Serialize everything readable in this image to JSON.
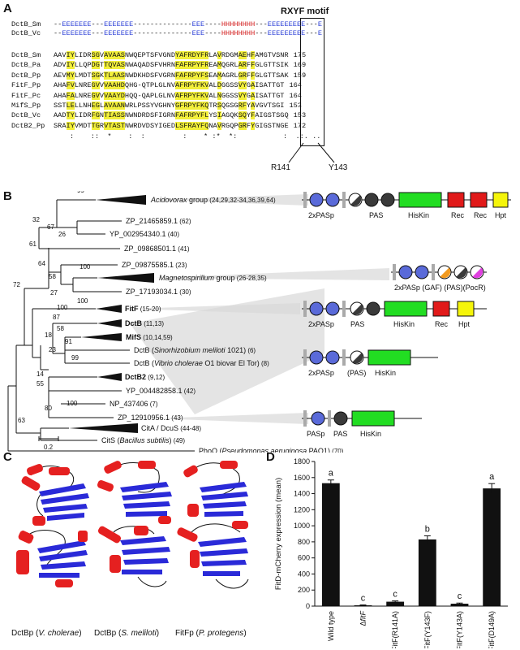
{
  "panels": {
    "a": "A",
    "b": "B",
    "c": "C",
    "d": "D"
  },
  "panel_a": {
    "motif_label": "RXYF motif",
    "ss": [
      {
        "name": "DctB_Sm",
        "seq": "--EEEEEEE---EEEEEEE--------------EEE----HHHHHHHH---EEEEEEEEE---E"
      },
      {
        "name": "DctB_Vc",
        "seq": "--EEEEEEE---EEEEEEE--------------EEE----HHHHHHHH---EEEEEEEEE---E"
      }
    ],
    "alignment": [
      {
        "name": "DctB_Sm",
        "seq": "AAVIYLIDRSGVAVAASNWQEPTSFVGNDYAFRDYFRLAVRDGMAEHFAMGTVSNR",
        "num": "175"
      },
      {
        "name": "DctB_Pa",
        "seq": "ADVIYLLQPDGTTQVASNWAQADSFVHRNFAFRPYFREAMQGRLARFFGLGTTSIK",
        "num": "169"
      },
      {
        "name": "DctB_Pp",
        "seq": "AEVMYLMDTSGKTLAASNWDKHDSFVGRNFAFRPYFSEAMAGRLGRFFGLGTTSAK",
        "num": "159"
      },
      {
        "name": "FitF_Pp",
        "seq": "AHAFVLNREGVVVAAHDQHG-QTPLGLNVAFRPYFKVALDGGSSVYGAISATTGT",
        "num": "164"
      },
      {
        "name": "FitF_Pc",
        "seq": "AHAFALNREGVVVAAYDHQQ-QAPLGLNVAFRPYFKVALNGGSSVYGAISATTGT",
        "num": "164"
      },
      {
        "name": "MifS_Pp",
        "seq": "SSTLELLNHEGLAVAANWRLPSSYVGHNYGFRPYFKQTRSQGSGRFYAVGVTSGI",
        "num": "153"
      },
      {
        "name": "DctB_Vc",
        "seq": "AADTYLIDRFGNTIASSNWNDRDSFIGRNFAFRPYFLYSIAGQKSQYFAIGSTSGQ",
        "num": "153"
      },
      {
        "name": "DctB2_Pp",
        "seq": "SRAIYVMDTTGRVTASTNWRDVDSYIGEDLSFRAYFQNAVRGQPGRFYGIGSTNGE",
        "num": "172"
      }
    ],
    "consensus": ":    ::  *    :  :         :    * :*  *:           :  .:. ..",
    "residue_left": "R141",
    "residue_right": "Y143"
  },
  "panel_b": {
    "scale_label": "0.2",
    "bootstrap": [
      "99",
      "32",
      "67",
      "26",
      "61",
      "64",
      "58",
      "100",
      "27",
      "72",
      "100",
      "100",
      "87",
      "18",
      "58",
      "91",
      "23",
      "99",
      "14",
      "55",
      "100",
      "63",
      "80"
    ],
    "taxa": [
      {
        "label": "Acidovorax",
        "suffix": " group",
        "nums": " (24,29,32-34,36,39,64)",
        "style": "italic"
      },
      {
        "label": "ZP_21465859.1",
        "nums": " (62)"
      },
      {
        "label": "YP_002954340.1",
        "nums": " (40)"
      },
      {
        "label": "ZP_09868501.1",
        "nums": " (41)"
      },
      {
        "label": "ZP_09875585.1",
        "nums": " (23)"
      },
      {
        "label": "Magnetospirillum",
        "suffix": " group",
        "nums": " (26-28,35)",
        "style": "italic"
      },
      {
        "label": "ZP_17193034.1",
        "nums": " (30)"
      },
      {
        "label": "FitF",
        "nums": " (15-20)",
        "style": "bold"
      },
      {
        "label": "DctB",
        "nums": " (11,13)",
        "style": "bold"
      },
      {
        "label": "MifS",
        "nums": " (10,14,59)",
        "style": "bold"
      },
      {
        "label": "DctB (",
        "italic": "Sinorhizobium meliloti",
        "tail": " 1021)",
        "nums": " (6)"
      },
      {
        "label": "DctB (",
        "italic": "Vibrio cholerae",
        "tail": " O1 biovar El Tor)",
        "nums": " (8)"
      },
      {
        "label": "DctB2",
        "nums": " (9,12)",
        "style": "bold"
      },
      {
        "label": "YP_004482858.1",
        "nums": " (42)"
      },
      {
        "label": "NP_437406",
        "nums": " (7)"
      },
      {
        "label": "ZP_12910956.1",
        "nums": " (43)"
      },
      {
        "label": "CitA / DcuS",
        "nums": " (44-48)"
      },
      {
        "label": "CitS (",
        "italic": "Bacillus subtilis",
        "tail": ")",
        "nums": " (49)"
      },
      {
        "label": "PhoQ (",
        "italic": "Pseudomonas aeruginosa",
        "tail": " PAO1)",
        "nums": " (70)"
      }
    ],
    "domains": [
      {
        "labels": [
          "2xPASp",
          "PAS",
          "HisKin",
          "Rec",
          "Rec",
          "Hpt"
        ]
      },
      {
        "labels": [
          "2xPASp (GAF) (PAS)(PocR)"
        ]
      },
      {
        "labels": [
          "2xPASp",
          "PAS",
          "HisKin",
          "Rec",
          "Hpt"
        ]
      },
      {
        "labels": [
          "2xPASp",
          "(PAS)",
          "HisKin"
        ]
      },
      {
        "labels": [
          "PASp",
          "PAS",
          "HisKin"
        ]
      }
    ],
    "colors": {
      "pasp": "#5a6ad9",
      "pas": "#3a3a3a",
      "hiskin": "#22dd22",
      "rec": "#e11a1a",
      "hpt": "#f5f50a",
      "gaf": "#f29a1f",
      "pocr": "#e040e0",
      "tm": "#aaaaaa"
    }
  },
  "panel_c": {
    "captions": [
      {
        "pre": "DctBp (",
        "it": "V. cholerae",
        "post": ")"
      },
      {
        "pre": "DctBp (",
        "it": "S. meliloti",
        "post": ")"
      },
      {
        "pre": "FitFp (",
        "it": "P. protegens",
        "post": ")"
      }
    ]
  },
  "chart_data": {
    "type": "bar",
    "ylabel": "FitD-mCherry expression (mean)",
    "ylim": [
      0,
      1800
    ],
    "yticks": [
      0,
      200,
      400,
      600,
      800,
      1000,
      1200,
      1400,
      1600,
      1800
    ],
    "categories": [
      "Wild type",
      "ΔfitF",
      "FitF(R141A)",
      "FitF(Y143F)",
      "FitF(Y143A)",
      "FitF(D149A)"
    ],
    "values": [
      1530,
      10,
      55,
      830,
      30,
      1465
    ],
    "errors": [
      40,
      5,
      10,
      45,
      8,
      60
    ],
    "letters": [
      "a",
      "c",
      "c",
      "b",
      "c",
      "a"
    ]
  }
}
